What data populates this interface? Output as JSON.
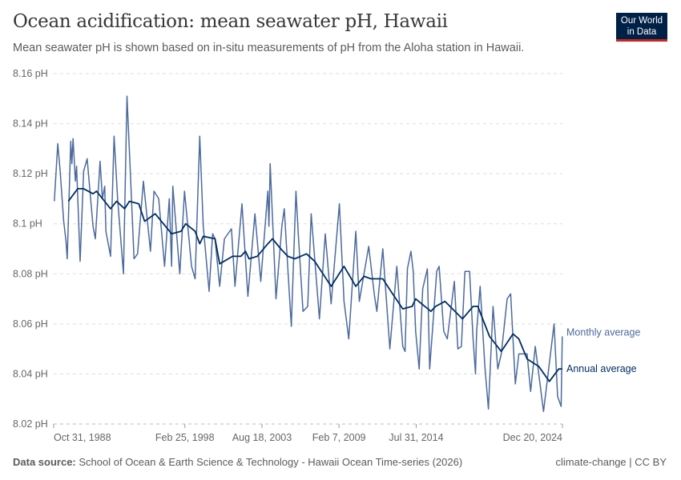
{
  "header": {
    "title": "Ocean acidification: mean seawater pH, Hawaii",
    "subtitle": "Mean seawater pH is shown based on in-situ measurements of pH from the Aloha station in Hawaii.",
    "logo_line1": "Our World",
    "logo_line2": "in Data"
  },
  "footer": {
    "source_label": "Data source:",
    "source_text": "School of Ocean & Earth Science & Technology - Hawaii Ocean Time-series (2026)",
    "license": "climate-change | CC BY"
  },
  "chart_data": {
    "type": "line",
    "title": "Ocean acidification: mean seawater pH, Hawaii",
    "xlabel": "",
    "ylabel": "",
    "xlim": [
      "1988-10-31",
      "2024-12-20"
    ],
    "ylim": [
      8.02,
      8.16
    ],
    "y_unit": "pH",
    "y_ticks": [
      8.02,
      8.04,
      8.06,
      8.08,
      8.1,
      8.12,
      8.14,
      8.16
    ],
    "y_tick_labels": [
      "8.02 pH",
      "8.04 pH",
      "8.06 pH",
      "8.08 pH",
      "8.1 pH",
      "8.12 pH",
      "8.14 pH",
      "8.16 pH"
    ],
    "x_ticks": [
      "1988-10-31",
      "1998-02-25",
      "2003-08-18",
      "2009-02-07",
      "2014-07-31",
      "2024-12-20"
    ],
    "x_tick_labels": [
      "Oct 31, 1988",
      "Feb 25, 1998",
      "Aug 18, 2003",
      "Feb 7, 2009",
      "Jul 31, 2014",
      "Dec 20, 2024"
    ],
    "grid": "horizontal dashed",
    "legend": "right, inline labels at line ends",
    "series": [
      {
        "name": "Monthly average",
        "color": "#4c6a9c",
        "points": [
          [
            "1988-11",
            8.109
          ],
          [
            "1989-02",
            8.132
          ],
          [
            "1989-04",
            8.121
          ],
          [
            "1989-07",
            8.101
          ],
          [
            "1989-09",
            8.093
          ],
          [
            "1989-10",
            8.086
          ],
          [
            "1990-01",
            8.133
          ],
          [
            "1990-02",
            8.124
          ],
          [
            "1990-03",
            8.134
          ],
          [
            "1990-05",
            8.117
          ],
          [
            "1990-06",
            8.123
          ],
          [
            "1990-09",
            8.085
          ],
          [
            "1990-12",
            8.121
          ],
          [
            "1991-03",
            8.126
          ],
          [
            "1991-08",
            8.099
          ],
          [
            "1991-10",
            8.094
          ],
          [
            "1992-02",
            8.125
          ],
          [
            "1992-04",
            8.11
          ],
          [
            "1992-06",
            8.115
          ],
          [
            "1992-07",
            8.097
          ],
          [
            "1992-11",
            8.087
          ],
          [
            "1993-02",
            8.135
          ],
          [
            "1993-05",
            8.11
          ],
          [
            "1993-10",
            8.08
          ],
          [
            "1994-01",
            8.151
          ],
          [
            "1994-04",
            8.119
          ],
          [
            "1994-07",
            8.086
          ],
          [
            "1994-10",
            8.088
          ],
          [
            "1995-03",
            8.117
          ],
          [
            "1995-09",
            8.089
          ],
          [
            "1995-12",
            8.113
          ],
          [
            "1996-04",
            8.11
          ],
          [
            "1996-09",
            8.083
          ],
          [
            "1997-01",
            8.11
          ],
          [
            "1997-03",
            8.083
          ],
          [
            "1997-04",
            8.115
          ],
          [
            "1997-10",
            8.08
          ],
          [
            "1998-02",
            8.113
          ],
          [
            "1998-08",
            8.083
          ],
          [
            "1998-11",
            8.078
          ],
          [
            "1999-03",
            8.135
          ],
          [
            "1999-06",
            8.099
          ],
          [
            "1999-11",
            8.073
          ],
          [
            "2000-02",
            8.096
          ],
          [
            "2000-04",
            8.094
          ],
          [
            "2000-08",
            8.075
          ],
          [
            "2000-12",
            8.094
          ],
          [
            "2001-06",
            8.098
          ],
          [
            "2001-09",
            8.075
          ],
          [
            "2002-03",
            8.108
          ],
          [
            "2002-08",
            8.071
          ],
          [
            "2003-02",
            8.104
          ],
          [
            "2003-07",
            8.077
          ],
          [
            "2004-01",
            8.113
          ],
          [
            "2004-02",
            8.099
          ],
          [
            "2004-03",
            8.124
          ],
          [
            "2004-08",
            8.07
          ],
          [
            "2005-01",
            8.099
          ],
          [
            "2005-03",
            8.106
          ],
          [
            "2005-09",
            8.059
          ],
          [
            "2006-01",
            8.113
          ],
          [
            "2006-03",
            8.096
          ],
          [
            "2006-07",
            8.065
          ],
          [
            "2006-11",
            8.067
          ],
          [
            "2007-02",
            8.104
          ],
          [
            "2007-09",
            8.062
          ],
          [
            "2008-02",
            8.096
          ],
          [
            "2008-07",
            8.068
          ],
          [
            "2009-02",
            8.108
          ],
          [
            "2009-06",
            8.069
          ],
          [
            "2009-10",
            8.054
          ],
          [
            "2010-04",
            8.097
          ],
          [
            "2010-07",
            8.069
          ],
          [
            "2011-03",
            8.091
          ],
          [
            "2011-08",
            8.071
          ],
          [
            "2011-10",
            8.065
          ],
          [
            "2012-03",
            8.09
          ],
          [
            "2012-09",
            8.05
          ],
          [
            "2013-03",
            8.083
          ],
          [
            "2013-08",
            8.051
          ],
          [
            "2013-10",
            8.049
          ],
          [
            "2013-12",
            8.082
          ],
          [
            "2014-03",
            8.089
          ],
          [
            "2014-05",
            8.081
          ],
          [
            "2014-07",
            8.057
          ],
          [
            "2014-10",
            8.042
          ],
          [
            "2015-01",
            8.074
          ],
          [
            "2015-05",
            8.082
          ],
          [
            "2015-07",
            8.042
          ],
          [
            "2016-01",
            8.081
          ],
          [
            "2016-03",
            8.083
          ],
          [
            "2016-07",
            8.057
          ],
          [
            "2016-10",
            8.054
          ],
          [
            "2017-04",
            8.077
          ],
          [
            "2017-07",
            8.05
          ],
          [
            "2017-10",
            8.051
          ],
          [
            "2018-01",
            8.081
          ],
          [
            "2018-05",
            8.081
          ],
          [
            "2018-08",
            8.054
          ],
          [
            "2018-10",
            8.04
          ],
          [
            "2018-11",
            8.057
          ],
          [
            "2019-02",
            8.075
          ],
          [
            "2019-06",
            8.043
          ],
          [
            "2019-09",
            8.026
          ],
          [
            "2020-01",
            8.067
          ],
          [
            "2020-05",
            8.042
          ],
          [
            "2020-08",
            8.048
          ],
          [
            "2021-01",
            8.07
          ],
          [
            "2021-04",
            8.072
          ],
          [
            "2021-08",
            8.036
          ],
          [
            "2021-11",
            8.048
          ],
          [
            "2022-06",
            8.048
          ],
          [
            "2022-09",
            8.033
          ],
          [
            "2023-01",
            8.051
          ],
          [
            "2023-08",
            8.025
          ],
          [
            "2024-05",
            8.06
          ],
          [
            "2024-08",
            8.031
          ],
          [
            "2024-11",
            8.027
          ],
          [
            "2024-12",
            8.055
          ]
        ]
      },
      {
        "name": "Annual average",
        "color": "#002d62",
        "points": [
          [
            "1989-11",
            8.109
          ],
          [
            "1990-07",
            8.114
          ],
          [
            "1990-12",
            8.114
          ],
          [
            "1991-08",
            8.112
          ],
          [
            "1991-11",
            8.113
          ],
          [
            "1992-11",
            8.106
          ],
          [
            "1993-04",
            8.109
          ],
          [
            "1993-11",
            8.106
          ],
          [
            "1994-03",
            8.109
          ],
          [
            "1994-11",
            8.108
          ],
          [
            "1995-04",
            8.101
          ],
          [
            "1996-01",
            8.104
          ],
          [
            "1997-03",
            8.096
          ],
          [
            "1997-11",
            8.097
          ],
          [
            "1998-03",
            8.1
          ],
          [
            "1998-11",
            8.097
          ],
          [
            "1999-03",
            8.092
          ],
          [
            "1999-06",
            8.095
          ],
          [
            "2000-04",
            8.094
          ],
          [
            "2000-08",
            8.084
          ],
          [
            "2001-07",
            8.087
          ],
          [
            "2002-02",
            8.087
          ],
          [
            "2002-06",
            8.089
          ],
          [
            "2002-09",
            8.086
          ],
          [
            "2003-04",
            8.087
          ],
          [
            "2004-01",
            8.092
          ],
          [
            "2004-05",
            8.094
          ],
          [
            "2004-12",
            8.09
          ],
          [
            "2005-06",
            8.087
          ],
          [
            "2005-12",
            8.086
          ],
          [
            "2006-10",
            8.088
          ],
          [
            "2007-05",
            8.085
          ],
          [
            "2008-07",
            8.075
          ],
          [
            "2009-06",
            8.083
          ],
          [
            "2010-04",
            8.075
          ],
          [
            "2010-11",
            8.079
          ],
          [
            "2011-05",
            8.078
          ],
          [
            "2012-03",
            8.078
          ],
          [
            "2012-10",
            8.073
          ],
          [
            "2013-08",
            8.066
          ],
          [
            "2014-04",
            8.067
          ],
          [
            "2014-07",
            8.07
          ],
          [
            "2015-08",
            8.065
          ],
          [
            "2015-12",
            8.067
          ],
          [
            "2016-08",
            8.069
          ],
          [
            "2017-11",
            8.062
          ],
          [
            "2018-08",
            8.067
          ],
          [
            "2018-12",
            8.067
          ],
          [
            "2019-10",
            8.055
          ],
          [
            "2020-08",
            8.049
          ],
          [
            "2021-06",
            8.056
          ],
          [
            "2021-11",
            8.054
          ],
          [
            "2022-06",
            8.046
          ],
          [
            "2023-04",
            8.043
          ],
          [
            "2024-01",
            8.037
          ],
          [
            "2024-09",
            8.042
          ],
          [
            "2024-12",
            8.042
          ]
        ]
      }
    ]
  }
}
